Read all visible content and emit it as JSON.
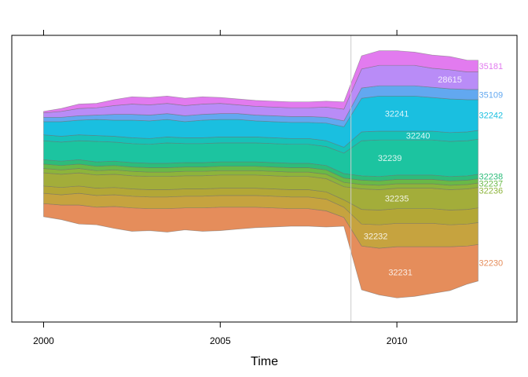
{
  "chart_data": {
    "type": "area",
    "subtype": "streamgraph",
    "title": "",
    "xlabel": "Time",
    "ylabel": "",
    "xlim": [
      1999.1,
      2013.4
    ],
    "x_ticks": [
      2000,
      2005,
      2010
    ],
    "x_tick_labels": [
      "2000",
      "2005",
      "2010"
    ],
    "reference_line_x": 2008.7,
    "grid": false,
    "legend": "none",
    "x": [
      2000.0,
      2000.5,
      2001.0,
      2001.5,
      2002.0,
      2002.5,
      2003.0,
      2003.5,
      2004.0,
      2004.5,
      2005.0,
      2005.5,
      2006.0,
      2006.5,
      2007.0,
      2007.5,
      2008.0,
      2008.5,
      2009.0,
      2009.5,
      2010.0,
      2010.5,
      2011.0,
      2011.5,
      2012.0,
      2012.3
    ],
    "center": [
      1.0,
      1.0,
      1.0,
      1.0,
      1.0,
      1.0,
      1.0,
      1.0,
      1.0,
      1.0,
      1.0,
      1.0,
      1.0,
      1.0,
      1.0,
      1.0,
      1.0,
      1.0,
      0.4,
      0.4,
      0.3,
      0.3,
      0.3,
      0.35,
      0.45,
      0.55
    ],
    "series": [
      {
        "name": "32230",
        "color": "#E58D5B",
        "inline_label": "32231",
        "inline_label_x": 2010.1,
        "values": [
          0.9,
          1.0,
          1.3,
          1.2,
          1.5,
          1.6,
          1.5,
          1.6,
          1.5,
          1.6,
          1.6,
          1.5,
          1.4,
          1.3,
          1.2,
          1.2,
          1.1,
          0.6,
          3.0,
          3.2,
          3.5,
          3.4,
          3.2,
          3.0,
          2.6,
          2.5
        ]
      },
      {
        "name": "",
        "color": "#C6A33F",
        "inline_label": "32232",
        "inline_label_x": 2009.4,
        "values": [
          0.7,
          0.7,
          0.8,
          0.8,
          0.8,
          0.8,
          0.8,
          0.8,
          0.8,
          0.8,
          0.8,
          0.8,
          0.8,
          0.8,
          0.8,
          0.8,
          0.8,
          0.7,
          1.5,
          1.6,
          1.6,
          1.6,
          1.6,
          1.5,
          1.5,
          1.5
        ]
      },
      {
        "name": "",
        "color": "#B3A736",
        "inline_label": "",
        "values": [
          0.5,
          0.5,
          0.5,
          0.5,
          0.5,
          0.5,
          0.5,
          0.5,
          0.5,
          0.5,
          0.5,
          0.5,
          0.5,
          0.5,
          0.5,
          0.5,
          0.5,
          0.5,
          1.0,
          1.0,
          1.0,
          1.0,
          1.0,
          1.0,
          1.0,
          1.0
        ]
      },
      {
        "name": "",
        "color": "#A3AD3A",
        "inline_label": "32235",
        "inline_label_x": 2010.0,
        "values": [
          0.9,
          0.9,
          0.9,
          0.9,
          0.9,
          0.9,
          0.9,
          0.9,
          0.9,
          0.9,
          0.9,
          0.9,
          0.9,
          0.9,
          0.9,
          0.9,
          0.9,
          0.9,
          1.4,
          1.4,
          1.4,
          1.4,
          1.4,
          1.4,
          1.4,
          1.4
        ]
      },
      {
        "name": "32236",
        "color": "#8DB43B",
        "inline_label": "",
        "values": [
          0.3,
          0.3,
          0.3,
          0.3,
          0.3,
          0.3,
          0.3,
          0.3,
          0.3,
          0.3,
          0.3,
          0.3,
          0.3,
          0.3,
          0.3,
          0.3,
          0.3,
          0.3,
          0.3,
          0.3,
          0.3,
          0.3,
          0.3,
          0.3,
          0.3,
          0.3
        ]
      },
      {
        "name": "32237",
        "color": "#69B947",
        "inline_label": "",
        "values": [
          0.3,
          0.3,
          0.3,
          0.3,
          0.3,
          0.3,
          0.3,
          0.3,
          0.3,
          0.3,
          0.3,
          0.3,
          0.3,
          0.3,
          0.3,
          0.3,
          0.3,
          0.3,
          0.3,
          0.3,
          0.3,
          0.3,
          0.3,
          0.3,
          0.3,
          0.3
        ]
      },
      {
        "name": "32238",
        "color": "#2DBC7A",
        "inline_label": "",
        "values": [
          0.3,
          0.3,
          0.3,
          0.3,
          0.3,
          0.3,
          0.3,
          0.3,
          0.3,
          0.3,
          0.3,
          0.3,
          0.3,
          0.3,
          0.3,
          0.3,
          0.3,
          0.3,
          0.3,
          0.3,
          0.3,
          0.3,
          0.3,
          0.3,
          0.3,
          0.3
        ]
      },
      {
        "name": "",
        "color": "#1CC4A0",
        "inline_label": "32239",
        "inline_label_x": 2009.8,
        "values": [
          1.3,
          1.3,
          1.3,
          1.4,
          1.3,
          1.3,
          1.3,
          1.4,
          1.3,
          1.3,
          1.3,
          1.3,
          1.3,
          1.3,
          1.3,
          1.3,
          1.3,
          1.4,
          2.4,
          2.5,
          2.4,
          2.4,
          2.4,
          2.4,
          2.4,
          2.4
        ]
      },
      {
        "name": "",
        "color": "#17C2B8",
        "inline_label": "32240",
        "inline_label_x": 2010.6,
        "values": [
          0.4,
          0.4,
          0.4,
          0.4,
          0.4,
          0.4,
          0.4,
          0.4,
          0.4,
          0.4,
          0.4,
          0.4,
          0.4,
          0.4,
          0.4,
          0.4,
          0.4,
          0.4,
          0.6,
          0.6,
          0.6,
          0.6,
          0.6,
          0.6,
          0.6,
          0.6
        ]
      },
      {
        "name": "32242",
        "color": "#1ABFE0",
        "inline_label": "32241",
        "inline_label_x": 2010.0,
        "values": [
          0.9,
          1.0,
          1.0,
          1.1,
          1.1,
          1.2,
          1.2,
          1.2,
          1.1,
          1.2,
          1.2,
          1.2,
          1.1,
          1.1,
          1.1,
          1.1,
          1.2,
          1.4,
          2.3,
          2.4,
          2.4,
          2.4,
          2.3,
          2.3,
          2.2,
          2.1
        ]
      },
      {
        "name": "35109",
        "color": "#62A8F0",
        "inline_label": "",
        "values": [
          0.3,
          0.3,
          0.3,
          0.3,
          0.4,
          0.4,
          0.4,
          0.4,
          0.4,
          0.4,
          0.4,
          0.4,
          0.4,
          0.4,
          0.4,
          0.4,
          0.4,
          0.4,
          0.7,
          0.7,
          0.7,
          0.7,
          0.7,
          0.7,
          0.7,
          0.7
        ]
      },
      {
        "name": "",
        "color": "#B98CF7",
        "inline_label": "28615",
        "inline_label_x": 2011.5,
        "values": [
          0.3,
          0.4,
          0.5,
          0.5,
          0.6,
          0.7,
          0.7,
          0.7,
          0.7,
          0.7,
          0.7,
          0.6,
          0.6,
          0.6,
          0.6,
          0.6,
          0.7,
          0.8,
          1.3,
          1.4,
          1.4,
          1.4,
          1.3,
          1.3,
          1.2,
          1.2
        ]
      },
      {
        "name": "35181",
        "color": "#E27BEF",
        "inline_label": "",
        "values": [
          0.1,
          0.2,
          0.3,
          0.3,
          0.4,
          0.5,
          0.5,
          0.5,
          0.5,
          0.5,
          0.4,
          0.4,
          0.4,
          0.4,
          0.4,
          0.4,
          0.4,
          0.5,
          0.9,
          1.0,
          1.0,
          0.9,
          0.9,
          0.9,
          0.8,
          0.8
        ]
      }
    ]
  }
}
